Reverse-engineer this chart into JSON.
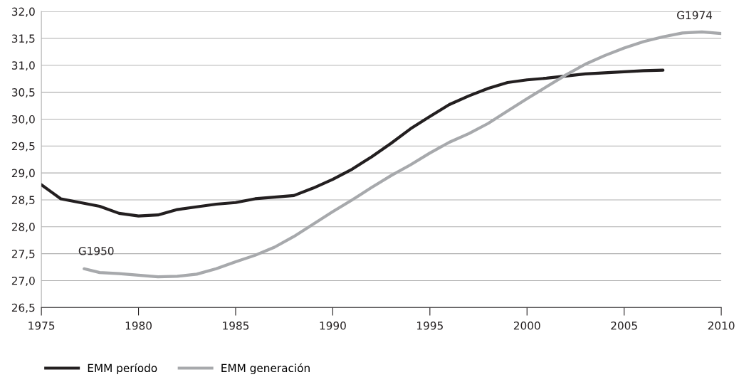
{
  "chart_data": {
    "type": "line",
    "xlim": [
      1975,
      2010
    ],
    "xticks": [
      1975,
      1980,
      1985,
      1990,
      1995,
      2000,
      2005,
      2010
    ],
    "ylim": [
      26.5,
      32.0
    ],
    "yticks": [
      {
        "value": 26.5,
        "label": "26,5"
      },
      {
        "value": 27.0,
        "label": "27,0"
      },
      {
        "value": 27.5,
        "label": "27,5"
      },
      {
        "value": 28.0,
        "label": "28,0"
      },
      {
        "value": 28.5,
        "label": "28,5"
      },
      {
        "value": 29.0,
        "label": "29,0"
      },
      {
        "value": 29.5,
        "label": "29,5"
      },
      {
        "value": 30.0,
        "label": "30,0"
      },
      {
        "value": 30.5,
        "label": "30,5"
      },
      {
        "value": 31.0,
        "label": "31,0"
      },
      {
        "value": 31.5,
        "label": "31,5"
      },
      {
        "value": 32.0,
        "label": "32,0"
      }
    ],
    "grid": "y",
    "legend": "bottom left",
    "line_style": "solid",
    "marker": "none",
    "series": [
      {
        "name": "EMM período",
        "color": "#231f20",
        "x": [
          1975,
          1975.5,
          1976,
          1977,
          1978,
          1979,
          1980,
          1981,
          1982,
          1983,
          1984,
          1985,
          1986,
          1987,
          1988,
          1989,
          1990,
          1991,
          1992,
          1993,
          1994,
          1995,
          1996,
          1997,
          1998,
          1999,
          2000,
          2001,
          2002,
          2003,
          2004,
          2005,
          2006,
          2007
        ],
        "values": [
          28.78,
          28.65,
          28.52,
          28.45,
          28.38,
          28.25,
          28.2,
          28.22,
          28.32,
          28.37,
          28.42,
          28.45,
          28.52,
          28.55,
          28.58,
          28.72,
          28.88,
          29.07,
          29.3,
          29.55,
          29.82,
          30.05,
          30.27,
          30.43,
          30.57,
          30.68,
          30.73,
          30.76,
          30.8,
          30.84,
          30.86,
          30.88,
          30.9,
          30.91
        ]
      },
      {
        "name": "EMM generación",
        "color": "#a7a9ac",
        "x": [
          1977.2,
          1978,
          1979,
          1980,
          1981,
          1982,
          1983,
          1984,
          1985,
          1986,
          1987,
          1988,
          1989,
          1990,
          1991,
          1992,
          1993,
          1994,
          1995,
          1996,
          1997,
          1998,
          1999,
          2000,
          2001,
          2002,
          2003,
          2004,
          2005,
          2006,
          2007,
          2008,
          2009,
          2010
        ],
        "values": [
          27.22,
          27.15,
          27.13,
          27.1,
          27.07,
          27.08,
          27.12,
          27.22,
          27.35,
          27.47,
          27.62,
          27.82,
          28.05,
          28.28,
          28.5,
          28.73,
          28.95,
          29.15,
          29.37,
          29.57,
          29.73,
          29.92,
          30.15,
          30.38,
          30.6,
          30.82,
          31.02,
          31.18,
          31.32,
          31.44,
          31.53,
          31.6,
          31.62,
          31.59
        ]
      }
    ],
    "annotations": [
      {
        "text": "G1950",
        "x": 1977.2,
        "y": 27.22
      },
      {
        "text": "G1974",
        "x": 2008,
        "y": 31.6
      }
    ]
  }
}
